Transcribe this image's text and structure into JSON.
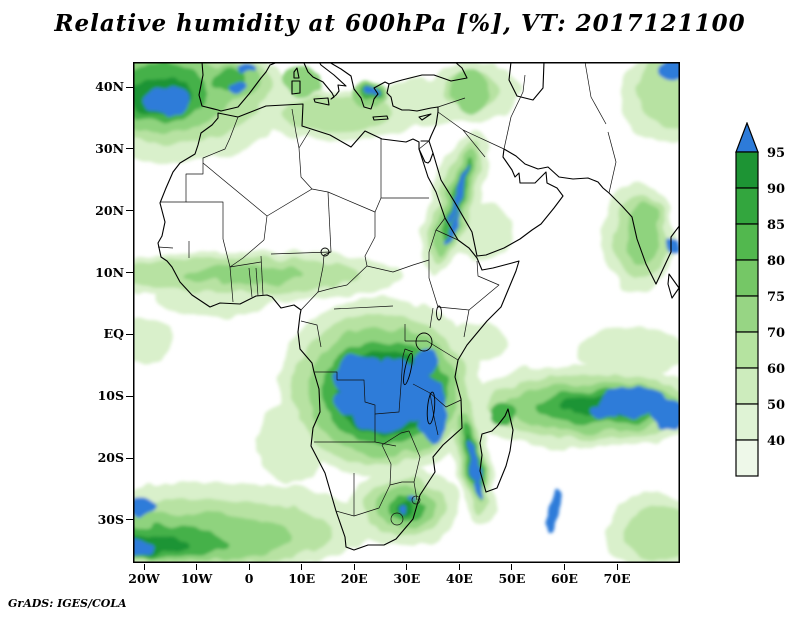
{
  "title": "Relative humidity at 600hPa [%], VT: 2017121100",
  "attribution": "GrADS: IGES/COLA",
  "chart_data": {
    "type": "heatmap",
    "chart_kind": "GrADS shaded contour map",
    "title": "Relative humidity at 600hPa [%], VT: 2017121100",
    "variable": "Relative humidity",
    "level": "600hPa",
    "units": "%",
    "valid_time_label": "VT: 2017121100",
    "region": "Africa, Middle East and surrounding oceans",
    "x_axis": {
      "ticks": [
        "20W",
        "10W",
        "0",
        "10E",
        "20E",
        "30E",
        "40E",
        "50E",
        "60E",
        "70E"
      ]
    },
    "y_axis": {
      "ticks": [
        "40N",
        "30N",
        "20N",
        "10N",
        "EQ",
        "10S",
        "20S",
        "30S"
      ]
    },
    "colorbar": {
      "orientation": "vertical",
      "position": "right",
      "tick_labels": [
        "95",
        "90",
        "85",
        "80",
        "75",
        "70",
        "60",
        "50",
        "40"
      ],
      "segments_top_to_bottom": [
        {
          "range": ">95",
          "color": "#2d7bd9",
          "shape": "triangle"
        },
        {
          "range": "90-95",
          "color": "#1d9434"
        },
        {
          "range": "85-90",
          "color": "#33a63e"
        },
        {
          "range": "80-85",
          "color": "#52b84e"
        },
        {
          "range": "75-80",
          "color": "#75c766"
        },
        {
          "range": "70-75",
          "color": "#97d584"
        },
        {
          "range": "60-70",
          "color": "#b5e3a0"
        },
        {
          "range": "50-60",
          "color": "#cdecbd"
        },
        {
          "range": "40-50",
          "color": "#dff3d5"
        },
        {
          "range": "<40",
          "color": "#eef8e9"
        }
      ]
    },
    "high_humidity_regions": [
      "Congo basin / Angola / Zambia saturated cores (>95%)",
      "East African lakes and Tanzania",
      "South Indian Ocean band near 10S reaching the east edge",
      "Mozambique Channel streak",
      "Iberia and NE Atlantic corner",
      "Red Sea / Ethiopian highlands streak",
      "Eastern South Africa",
      "South Atlantic storm track in bottom-left corner"
    ]
  }
}
